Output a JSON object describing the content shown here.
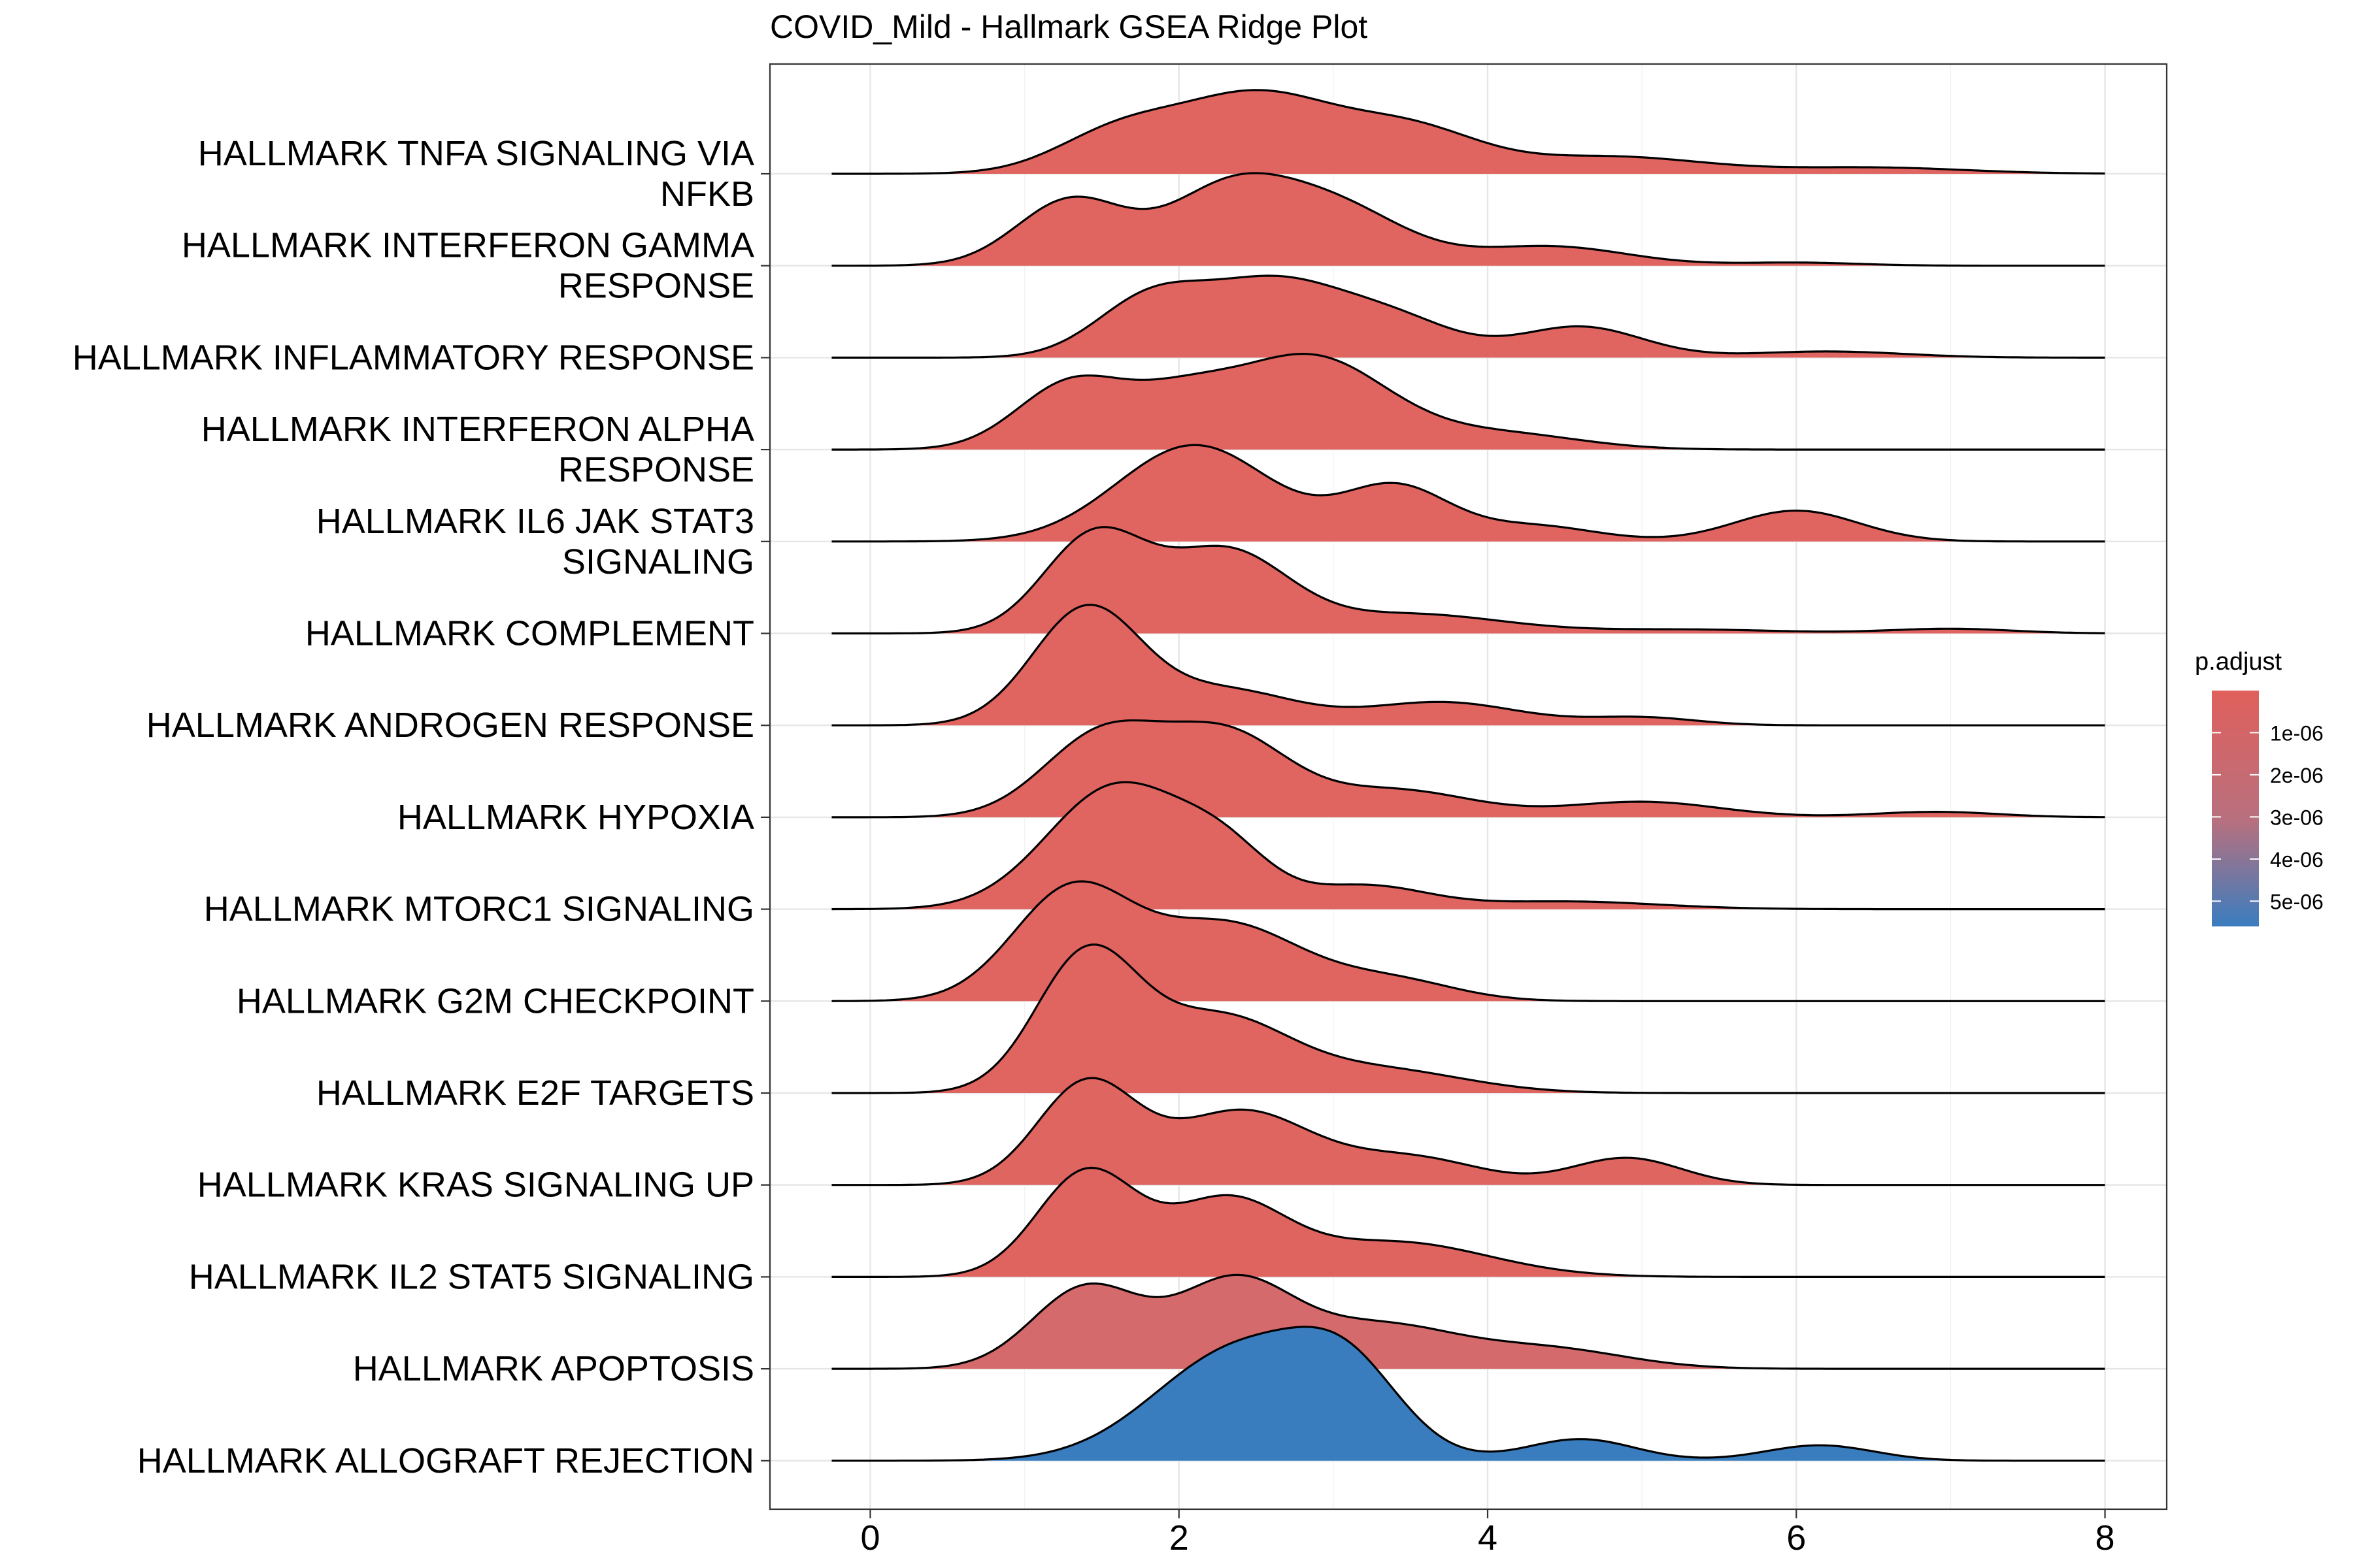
{
  "chart_data": {
    "type": "ridgeline",
    "title": "COVID_Mild - Hallmark GSEA Ridge Plot",
    "xlabel": "",
    "ylabel": "",
    "xlim": [
      -0.65,
      8.4
    ],
    "xticks": [
      0,
      2,
      4,
      6,
      8
    ],
    "grid": true,
    "legend": {
      "title": "p.adjust",
      "position": "right",
      "ticks": [
        "1e-06",
        "2e-06",
        "3e-06",
        "4e-06",
        "5e-06"
      ],
      "tick_values": [
        1e-06,
        2e-06,
        3e-06,
        4e-06,
        5e-06
      ],
      "range": [
        1e-09,
        5.6e-06
      ],
      "color_low": "#e0605c",
      "color_high": "#3a7dbf"
    },
    "density_x_range": [
      -0.25,
      8.0
    ],
    "series": [
      {
        "label": "HALLMARK TNFA SIGNALING VIA NFKB",
        "label_lines": [
          "HALLMARK TNFA SIGNALING VIA",
          "NFKB"
        ],
        "p_adjust": 1e-09,
        "color": "#e0645f",
        "peaks": [
          {
            "x": 1.6,
            "h": 0.5,
            "w": 0.4
          },
          {
            "x": 2.5,
            "h": 1.0,
            "w": 0.5
          },
          {
            "x": 3.5,
            "h": 0.55,
            "w": 0.45
          },
          {
            "x": 4.8,
            "h": 0.22,
            "w": 0.6
          },
          {
            "x": 6.5,
            "h": 0.08,
            "w": 0.6
          }
        ]
      },
      {
        "label": "HALLMARK INTERFERON GAMMA RESPONSE",
        "label_lines": [
          "HALLMARK INTERFERON GAMMA",
          "RESPONSE"
        ],
        "p_adjust": 1e-09,
        "color": "#e0645f",
        "peaks": [
          {
            "x": 1.3,
            "h": 0.85,
            "w": 0.35
          },
          {
            "x": 2.3,
            "h": 0.9,
            "w": 0.4
          },
          {
            "x": 3.0,
            "h": 0.75,
            "w": 0.45
          },
          {
            "x": 4.4,
            "h": 0.25,
            "w": 0.5
          },
          {
            "x": 6.0,
            "h": 0.04,
            "w": 0.4
          }
        ]
      },
      {
        "label": "HALLMARK INFLAMMATORY RESPONSE",
        "label_lines": [
          "HALLMARK INFLAMMATORY RESPONSE"
        ],
        "p_adjust": 1e-09,
        "color": "#e0645f",
        "peaks": [
          {
            "x": 1.8,
            "h": 0.7,
            "w": 0.35
          },
          {
            "x": 2.6,
            "h": 0.95,
            "w": 0.45
          },
          {
            "x": 3.4,
            "h": 0.45,
            "w": 0.4
          },
          {
            "x": 4.6,
            "h": 0.4,
            "w": 0.4
          },
          {
            "x": 6.2,
            "h": 0.08,
            "w": 0.5
          }
        ]
      },
      {
        "label": "HALLMARK INTERFERON ALPHA RESPONSE",
        "label_lines": [
          "HALLMARK INTERFERON ALPHA",
          "RESPONSE"
        ],
        "p_adjust": 1e-09,
        "color": "#e0645f",
        "peaks": [
          {
            "x": 1.3,
            "h": 0.85,
            "w": 0.35
          },
          {
            "x": 2.0,
            "h": 0.55,
            "w": 0.35
          },
          {
            "x": 2.85,
            "h": 1.2,
            "w": 0.5
          },
          {
            "x": 4.1,
            "h": 0.2,
            "w": 0.5
          }
        ]
      },
      {
        "label": "HALLMARK IL6 JAK STAT3 SIGNALING",
        "label_lines": [
          "HALLMARK IL6 JAK STAT3",
          "SIGNALING"
        ],
        "p_adjust": 1e-09,
        "color": "#e0645f",
        "peaks": [
          {
            "x": 2.1,
            "h": 1.25,
            "w": 0.5
          },
          {
            "x": 3.4,
            "h": 0.7,
            "w": 0.35
          },
          {
            "x": 4.3,
            "h": 0.2,
            "w": 0.4
          },
          {
            "x": 6.0,
            "h": 0.4,
            "w": 0.4
          }
        ]
      },
      {
        "label": "HALLMARK COMPLEMENT",
        "label_lines": [
          "HALLMARK COMPLEMENT"
        ],
        "p_adjust": 1e-09,
        "color": "#e0645f",
        "peaks": [
          {
            "x": 1.45,
            "h": 1.25,
            "w": 0.33
          },
          {
            "x": 2.3,
            "h": 1.05,
            "w": 0.4
          },
          {
            "x": 3.5,
            "h": 0.25,
            "w": 0.6
          },
          {
            "x": 5.3,
            "h": 0.05,
            "w": 0.6
          },
          {
            "x": 7.0,
            "h": 0.06,
            "w": 0.4
          }
        ]
      },
      {
        "label": "HALLMARK ANDROGEN RESPONSE",
        "label_lines": [
          "HALLMARK ANDROGEN RESPONSE"
        ],
        "p_adjust": 1e-09,
        "color": "#e0645f",
        "peaks": [
          {
            "x": 1.4,
            "h": 1.5,
            "w": 0.35
          },
          {
            "x": 2.3,
            "h": 0.45,
            "w": 0.45
          },
          {
            "x": 3.7,
            "h": 0.3,
            "w": 0.5
          },
          {
            "x": 5.0,
            "h": 0.1,
            "w": 0.35
          }
        ]
      },
      {
        "label": "HALLMARK HYPOXIA",
        "label_lines": [
          "HALLMARK HYPOXIA"
        ],
        "p_adjust": 1e-09,
        "color": "#e0645f",
        "peaks": [
          {
            "x": 1.5,
            "h": 1.05,
            "w": 0.38
          },
          {
            "x": 2.3,
            "h": 1.05,
            "w": 0.4
          },
          {
            "x": 3.4,
            "h": 0.35,
            "w": 0.5
          },
          {
            "x": 5.0,
            "h": 0.2,
            "w": 0.5
          },
          {
            "x": 6.9,
            "h": 0.07,
            "w": 0.4
          }
        ]
      },
      {
        "label": "HALLMARK MTORC1 SIGNALING",
        "label_lines": [
          "HALLMARK MTORC1 SIGNALING"
        ],
        "p_adjust": 1e-09,
        "color": "#e0645f",
        "peaks": [
          {
            "x": 1.6,
            "h": 1.6,
            "w": 0.45
          },
          {
            "x": 2.3,
            "h": 0.6,
            "w": 0.3
          },
          {
            "x": 3.2,
            "h": 0.3,
            "w": 0.4
          },
          {
            "x": 4.5,
            "h": 0.1,
            "w": 0.6
          }
        ]
      },
      {
        "label": "HALLMARK G2M CHECKPOINT",
        "label_lines": [
          "HALLMARK G2M CHECKPOINT"
        ],
        "p_adjust": 1e-09,
        "color": "#e0645f",
        "peaks": [
          {
            "x": 1.3,
            "h": 1.4,
            "w": 0.38
          },
          {
            "x": 2.3,
            "h": 1.0,
            "w": 0.5
          },
          {
            "x": 3.4,
            "h": 0.25,
            "w": 0.4
          }
        ]
      },
      {
        "label": "HALLMARK E2F TARGETS",
        "label_lines": [
          "HALLMARK E2F TARGETS"
        ],
        "p_adjust": 1e-09,
        "color": "#e0645f",
        "peaks": [
          {
            "x": 1.4,
            "h": 1.75,
            "w": 0.33
          },
          {
            "x": 2.25,
            "h": 0.95,
            "w": 0.45
          },
          {
            "x": 3.3,
            "h": 0.3,
            "w": 0.55
          }
        ]
      },
      {
        "label": "HALLMARK KRAS SIGNALING UP",
        "label_lines": [
          "HALLMARK KRAS SIGNALING UP"
        ],
        "p_adjust": 3e-07,
        "color": "#df6660",
        "peaks": [
          {
            "x": 1.4,
            "h": 1.3,
            "w": 0.32
          },
          {
            "x": 2.4,
            "h": 0.95,
            "w": 0.45
          },
          {
            "x": 3.5,
            "h": 0.35,
            "w": 0.45
          },
          {
            "x": 4.9,
            "h": 0.35,
            "w": 0.35
          }
        ]
      },
      {
        "label": "HALLMARK IL2 STAT5 SIGNALING",
        "label_lines": [
          "HALLMARK IL2 STAT5 SIGNALING"
        ],
        "p_adjust": 1e-07,
        "color": "#df6460",
        "peaks": [
          {
            "x": 1.4,
            "h": 1.35,
            "w": 0.32
          },
          {
            "x": 2.3,
            "h": 0.95,
            "w": 0.38
          },
          {
            "x": 3.4,
            "h": 0.45,
            "w": 0.6
          }
        ]
      },
      {
        "label": "HALLMARK APOPTOSIS",
        "label_lines": [
          "HALLMARK APOPTOSIS"
        ],
        "p_adjust": 1.2e-06,
        "color": "#d46a6b",
        "peaks": [
          {
            "x": 1.4,
            "h": 1.05,
            "w": 0.35
          },
          {
            "x": 2.35,
            "h": 1.1,
            "w": 0.38
          },
          {
            "x": 3.3,
            "h": 0.55,
            "w": 0.5
          },
          {
            "x": 4.4,
            "h": 0.25,
            "w": 0.5
          }
        ]
      },
      {
        "label": "HALLMARK ALLOGRAFT REJECTION",
        "label_lines": [
          "HALLMARK ALLOGRAFT REJECTION"
        ],
        "p_adjust": 5.6e-06,
        "color": "#3a7dbf",
        "peaks": [
          {
            "x": 2.4,
            "h": 1.45,
            "w": 0.55
          },
          {
            "x": 3.1,
            "h": 0.9,
            "w": 0.35
          },
          {
            "x": 4.6,
            "h": 0.28,
            "w": 0.35
          },
          {
            "x": 6.15,
            "h": 0.2,
            "w": 0.35
          }
        ]
      }
    ]
  }
}
